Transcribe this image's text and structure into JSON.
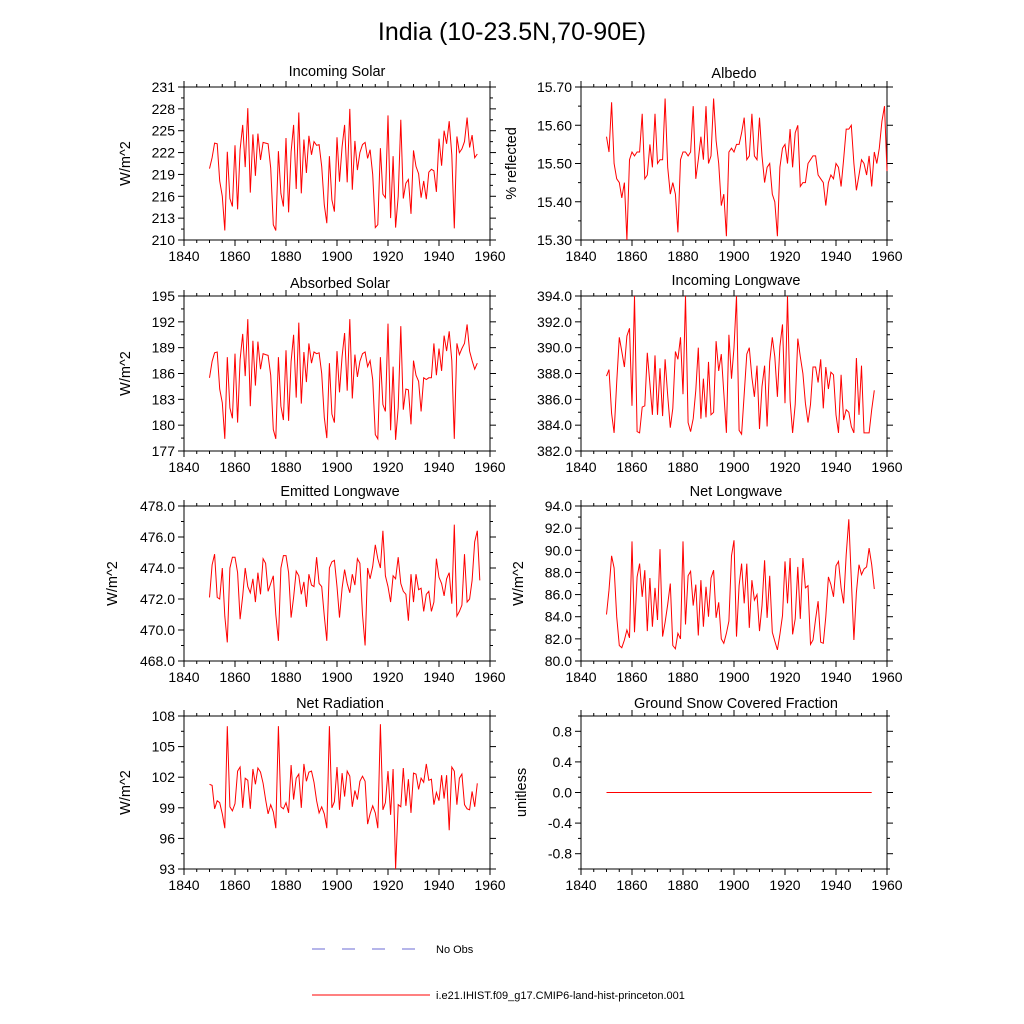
{
  "title": "India (10-23.5N,70-90E)",
  "colors": {
    "model": "#ff0000",
    "obs": "#6b6bd6",
    "axis": "#000000"
  },
  "legend": {
    "obs_label": "No Obs",
    "model_label": "i.e21.IHIST.f09_g17.CMIP6-land-hist-princeton.001"
  },
  "chart_data": [
    {
      "type": "line",
      "title": "Incoming Solar",
      "ylabel": "W/m^2",
      "xlim": [
        1840,
        1960
      ],
      "ylim": [
        210,
        231
      ],
      "xticks": [
        "1840",
        "1860",
        "1880",
        "1900",
        "1920",
        "1940",
        "1960"
      ],
      "yticks": [
        "210",
        "213",
        "216",
        "219",
        "222",
        "225",
        "228",
        "231"
      ],
      "series": [
        {
          "start_year": 1850,
          "values": [
            219.8,
            221.3,
            223.3,
            223.2,
            218.1,
            216.0,
            211.3,
            222.1,
            215.7,
            214.6,
            223.0,
            214.2,
            222.4,
            225.8,
            220.0,
            228.1,
            216.5,
            224.5,
            218.8,
            224.6,
            221.0,
            223.4,
            223.3,
            223.2,
            219.9,
            212.1,
            211.3,
            222.2,
            216.4,
            214.6,
            224.0,
            213.8,
            222.1,
            225.8,
            217.0,
            227.5,
            216.4,
            223.8,
            219.2,
            224.3,
            221.7,
            223.5,
            223.0,
            223.1,
            220.1,
            214.8,
            212.3,
            221.5,
            215.5,
            213.9,
            224.1,
            218.0,
            222.8,
            225.8,
            217.9,
            228.0,
            216.9,
            223.6,
            219.6,
            222.0,
            223.1,
            223.4,
            221.2,
            222.4,
            219.0,
            211.7,
            212.1,
            222.6,
            216.3,
            215.8,
            227.1,
            213.0,
            221.5,
            211.7,
            216.0,
            226.5,
            215.7,
            217.8,
            218.3,
            213.6,
            222.3,
            220.1,
            219.1,
            215.8,
            218.1,
            215.6,
            219.3,
            219.7,
            219.5,
            216.6,
            223.9,
            220.2,
            225.0,
            223.2,
            226.3,
            221.7,
            211.6,
            224.2,
            222.0,
            222.5,
            223.5,
            226.8,
            222.7,
            224.4,
            221.3,
            221.8
          ]
        }
      ]
    },
    {
      "type": "line",
      "title": "Albedo",
      "ylabel": "% reflected",
      "xlim": [
        1840,
        1960
      ],
      "ylim": [
        15.3,
        15.7
      ],
      "xticks": [
        "1840",
        "1860",
        "1880",
        "1900",
        "1920",
        "1940",
        "1960"
      ],
      "yticks": [
        "15.30",
        "15.40",
        "15.50",
        "15.60",
        "15.70"
      ],
      "series": [
        {
          "start_year": 1850,
          "values": [
            15.57,
            15.53,
            15.66,
            15.5,
            15.46,
            15.45,
            15.41,
            15.45,
            15.3,
            15.51,
            15.53,
            15.52,
            15.53,
            15.53,
            15.63,
            15.46,
            15.47,
            15.55,
            15.49,
            15.63,
            15.5,
            15.51,
            15.51,
            15.67,
            15.49,
            15.42,
            15.45,
            15.42,
            15.32,
            15.51,
            15.53,
            15.53,
            15.52,
            15.53,
            15.65,
            15.46,
            15.51,
            15.57,
            15.51,
            15.65,
            15.5,
            15.52,
            15.67,
            15.56,
            15.5,
            15.39,
            15.42,
            15.31,
            15.53,
            15.54,
            15.53,
            15.55,
            15.55,
            15.58,
            15.62,
            15.51,
            15.52,
            15.63,
            15.52,
            15.51,
            15.62,
            15.52,
            15.45,
            15.49,
            15.5,
            15.42,
            15.4,
            15.31,
            15.49,
            15.54,
            15.55,
            15.5,
            15.59,
            15.49,
            15.58,
            15.6,
            15.44,
            15.45,
            15.45,
            15.5,
            15.51,
            15.52,
            15.52,
            15.47,
            15.46,
            15.45,
            15.39,
            15.45,
            15.47,
            15.46,
            15.5,
            15.49,
            15.44,
            15.51,
            15.59,
            15.59,
            15.6,
            15.5,
            15.43,
            15.47,
            15.51,
            15.5,
            15.47,
            15.52,
            15.44,
            15.53,
            15.5,
            15.54,
            15.61,
            15.65,
            15.48
          ]
        }
      ]
    },
    {
      "type": "line",
      "title": "Absorbed Solar",
      "ylabel": "W/m^2",
      "xlim": [
        1840,
        1960
      ],
      "ylim": [
        177,
        195
      ],
      "xticks": [
        "1840",
        "1860",
        "1880",
        "1900",
        "1920",
        "1940",
        "1960"
      ],
      "yticks": [
        "177",
        "180",
        "183",
        "186",
        "189",
        "192",
        "195"
      ],
      "series": [
        {
          "start_year": 1850,
          "values": [
            185.5,
            187.4,
            188.4,
            188.5,
            184.2,
            182.6,
            178.4,
            187.9,
            182.0,
            180.8,
            188.3,
            180.3,
            187.6,
            190.6,
            185.7,
            192.3,
            182.2,
            189.8,
            184.6,
            189.7,
            186.5,
            188.3,
            188.2,
            188.1,
            185.8,
            179.5,
            178.4,
            187.9,
            182.2,
            180.6,
            188.7,
            180.5,
            187.4,
            190.5,
            183.2,
            191.9,
            182.5,
            188.5,
            185.0,
            189.5,
            187.2,
            188.5,
            188.3,
            188.4,
            186.0,
            180.9,
            178.5,
            187.2,
            181.3,
            180.3,
            188.6,
            183.8,
            188.0,
            190.7,
            184.0,
            192.3,
            183.1,
            188.2,
            185.6,
            187.4,
            188.3,
            188.5,
            186.8,
            187.5,
            185.3,
            178.9,
            178.4,
            187.9,
            182.4,
            181.6,
            191.8,
            179.4,
            186.8,
            178.3,
            182.0,
            191.5,
            181.8,
            184.2,
            184.1,
            180.1,
            187.5,
            185.8,
            185.1,
            181.6,
            185.5,
            185.3,
            185.5,
            185.5,
            189.5,
            185.8,
            188.9,
            186.3,
            190.4,
            188.6,
            190.9,
            187.5,
            178.4,
            189.5,
            188.2,
            188.9,
            189.5,
            191.7,
            188.6,
            187.5,
            186.5,
            187.2
          ]
        }
      ]
    },
    {
      "type": "line",
      "title": "Incoming Longwave",
      "ylabel": "",
      "xlim": [
        1840,
        1960
      ],
      "ylim": [
        382,
        394
      ],
      "xticks": [
        "1840",
        "1860",
        "1880",
        "1900",
        "1920",
        "1940",
        "1960"
      ],
      "yticks": [
        "382.0",
        "384.0",
        "386.0",
        "388.0",
        "390.0",
        "392.0",
        "394.0"
      ],
      "series": [
        {
          "start_year": 1850,
          "values": [
            387.8,
            388.3,
            384.9,
            383.4,
            387.3,
            390.8,
            389.7,
            388.5,
            390.9,
            391.5,
            385.5,
            394.0,
            383.5,
            383.4,
            385.4,
            385.5,
            389.6,
            387.2,
            384.8,
            389.4,
            384.8,
            388.4,
            384.7,
            389.1,
            386.3,
            383.8,
            385.3,
            389.7,
            389.1,
            390.8,
            386.4,
            394.0,
            384.2,
            383.5,
            384.5,
            386.7,
            390.0,
            384.5,
            387.6,
            384.6,
            388.9,
            384.8,
            385.0,
            390.5,
            388.2,
            389.5,
            386.5,
            383.4,
            391.0,
            387.6,
            390.0,
            394.0,
            383.6,
            383.3,
            386.4,
            389.5,
            390.0,
            387.7,
            386.2,
            388.6,
            383.7,
            387.0,
            388.6,
            383.9,
            388.9,
            390.8,
            389.3,
            386.2,
            390.1,
            391.8,
            385.7,
            394.0,
            385.9,
            383.4,
            385.6,
            390.7,
            389.3,
            388.0,
            385.7,
            384.2,
            385.6,
            388.5,
            388.5,
            387.3,
            389.1,
            385.3,
            388.5,
            386.8,
            388.1,
            387.9,
            384.8,
            383.4,
            387.9,
            384.4,
            385.2,
            385.0,
            383.9,
            383.4,
            389.2,
            384.8,
            388.6,
            383.4,
            383.4,
            383.4,
            385.2,
            386.7
          ]
        }
      ]
    },
    {
      "type": "line",
      "title": "Emitted Longwave",
      "ylabel": "W/m^2",
      "xlim": [
        1840,
        1960
      ],
      "ylim": [
        468,
        478
      ],
      "xticks": [
        "1840",
        "1860",
        "1880",
        "1900",
        "1920",
        "1940",
        "1960"
      ],
      "yticks": [
        "468.0",
        "470.0",
        "472.0",
        "474.0",
        "476.0",
        "478.0"
      ],
      "series": [
        {
          "start_year": 1850,
          "values": [
            472.1,
            474.2,
            474.9,
            472.1,
            472.0,
            474.0,
            470.9,
            469.2,
            474.0,
            474.7,
            474.7,
            473.7,
            470.7,
            472.2,
            474.0,
            472.8,
            472.4,
            473.3,
            471.8,
            473.7,
            472.3,
            474.6,
            474.3,
            472.5,
            473.0,
            473.5,
            471.0,
            469.3,
            474.0,
            474.8,
            474.8,
            473.7,
            470.8,
            472.1,
            473.8,
            473.5,
            472.3,
            473.1,
            471.5,
            473.6,
            472.9,
            472.8,
            474.7,
            473.0,
            472.8,
            470.9,
            469.3,
            474.0,
            474.4,
            474.5,
            472.8,
            470.8,
            472.7,
            473.9,
            473.0,
            472.4,
            473.6,
            472.9,
            474.6,
            474.3,
            471.0,
            469.0,
            474.0,
            473.3,
            474.1,
            475.5,
            474.6,
            474.0,
            476.4,
            473.5,
            472.8,
            471.8,
            473.5,
            473.3,
            474.7,
            473.0,
            472.5,
            472.3,
            470.6,
            473.6,
            471.8,
            473.6,
            472.6,
            472.7,
            471.2,
            472.3,
            472.5,
            471.2,
            471.8,
            474.6,
            473.4,
            473.0,
            472.2,
            473.3,
            473.7,
            471.7,
            476.8,
            470.9,
            471.2,
            471.6,
            474.9,
            471.8,
            472.0,
            473.2,
            475.7,
            476.4,
            473.2
          ]
        }
      ]
    },
    {
      "type": "line",
      "title": "Net Longwave",
      "ylabel": "W/m^2",
      "xlim": [
        1840,
        1960
      ],
      "ylim": [
        80,
        94
      ],
      "xticks": [
        "1840",
        "1860",
        "1880",
        "1900",
        "1920",
        "1940",
        "1960"
      ],
      "yticks": [
        "80.0",
        "82.0",
        "84.0",
        "86.0",
        "88.0",
        "90.0",
        "92.0",
        "94.0"
      ],
      "series": [
        {
          "start_year": 1850,
          "values": [
            84.2,
            86.4,
            89.5,
            88.4,
            84.0,
            81.4,
            81.2,
            81.9,
            82.8,
            82.1,
            90.8,
            82.6,
            87.6,
            88.8,
            85.8,
            88.2,
            82.7,
            87.5,
            83.1,
            86.6,
            83.7,
            90.1,
            82.2,
            83.5,
            85.1,
            87.0,
            81.4,
            81.1,
            82.5,
            82.0,
            90.8,
            83.3,
            87.7,
            88.1,
            85.0,
            86.9,
            82.3,
            87.3,
            83.1,
            86.7,
            84.0,
            87.5,
            88.2,
            83.9,
            85.3,
            82.0,
            81.6,
            82.5,
            83.6,
            89.5,
            90.9,
            82.2,
            86.8,
            88.8,
            85.2,
            88.8,
            83.0,
            87.3,
            85.5,
            86.0,
            82.7,
            85.0,
            89.1,
            83.9,
            87.7,
            82.6,
            81.8,
            81.0,
            82.4,
            84.1,
            89.0,
            85.2,
            89.3,
            82.4,
            83.8,
            88.5,
            83.8,
            89.3,
            86.6,
            86.8,
            81.5,
            81.9,
            83.8,
            85.4,
            81.7,
            81.6,
            84.0,
            87.6,
            86.9,
            85.8,
            88.6,
            89.0,
            86.6,
            85.2,
            89.6,
            92.8,
            87.4,
            81.9,
            86.2,
            88.7,
            87.8,
            88.3,
            88.5,
            90.2,
            88.7,
            86.5
          ]
        }
      ]
    },
    {
      "type": "line",
      "title": "Net Radiation",
      "ylabel": "W/m^2",
      "xlim": [
        1840,
        1960
      ],
      "ylim": [
        93,
        108
      ],
      "xticks": [
        "1840",
        "1860",
        "1880",
        "1900",
        "1920",
        "1940",
        "1960"
      ],
      "yticks": [
        "93",
        "96",
        "99",
        "102",
        "105",
        "108"
      ],
      "series": [
        {
          "start_year": 1850,
          "values": [
            101.3,
            101.2,
            98.9,
            99.7,
            99.5,
            98.4,
            97.0,
            107.0,
            99.1,
            98.7,
            99.4,
            102.6,
            103.0,
            99.0,
            101.9,
            101.7,
            98.9,
            102.8,
            101.3,
            102.9,
            102.5,
            101.4,
            99.8,
            98.4,
            99.3,
            98.6,
            97.0,
            107.0,
            99.1,
            98.9,
            99.5,
            98.5,
            103.2,
            99.8,
            101.9,
            102.3,
            99.0,
            103.3,
            101.6,
            102.5,
            102.6,
            101.5,
            99.7,
            98.5,
            99.1,
            98.4,
            97.0,
            107.0,
            99.0,
            99.6,
            103.0,
            98.8,
            102.4,
            100.1,
            102.6,
            102.1,
            99.1,
            100.7,
            99.8,
            101.6,
            102.1,
            101.6,
            97.4,
            98.4,
            99.2,
            98.5,
            97.0,
            107.2,
            98.8,
            99.5,
            102.6,
            98.3,
            102.8,
            93.0,
            99.3,
            99.1,
            102.9,
            99.2,
            101.8,
            98.5,
            102.4,
            102.3,
            100.8,
            101.9,
            101.5,
            103.3,
            101.7,
            101.8,
            99.3,
            100.5,
            99.7,
            102.2,
            99.9,
            102.2,
            96.8,
            103.0,
            102.6,
            99.3,
            101.9,
            102.3,
            99.3,
            98.9,
            98.8,
            100.6,
            99.1,
            101.4
          ]
        }
      ]
    },
    {
      "type": "line",
      "title": "Ground Snow Covered Fraction",
      "ylabel": "unitless",
      "xlim": [
        1840,
        1960
      ],
      "ylim": [
        -1,
        1
      ],
      "xticks": [
        "1840",
        "1860",
        "1880",
        "1900",
        "1920",
        "1940",
        "1960"
      ],
      "yticks": [
        "-0.8",
        "-0.4",
        "0.0",
        "0.4",
        "0.8"
      ],
      "series": [
        {
          "start_year": 1850,
          "values": "constant",
          "value": 0.0,
          "end_year": 1954
        }
      ]
    }
  ]
}
